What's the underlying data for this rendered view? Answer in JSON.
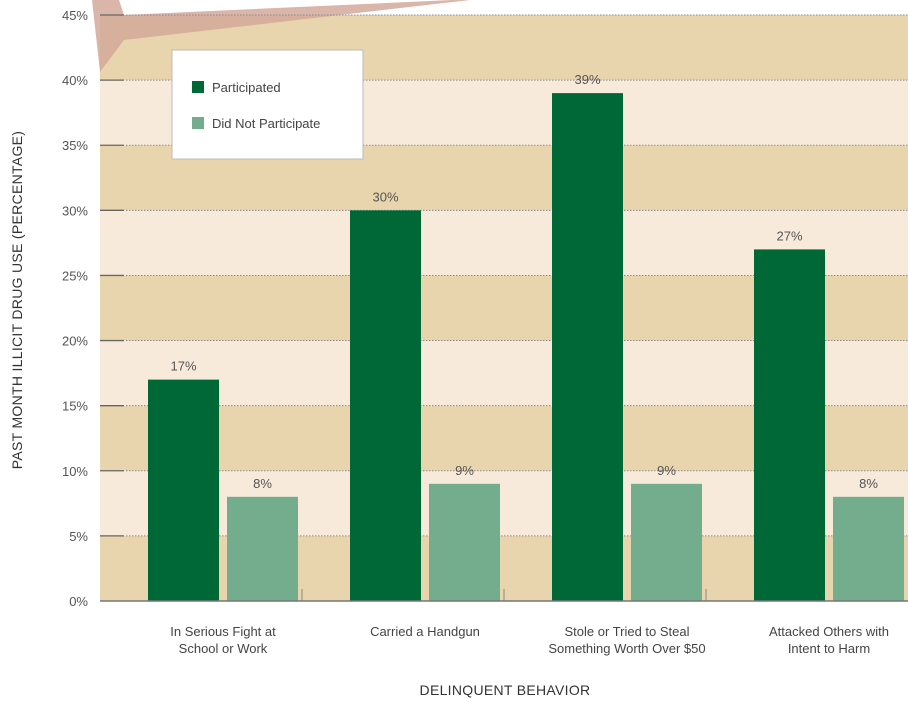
{
  "chart_data": {
    "type": "bar",
    "xlabel": "DELINQUENT BEHAVIOR",
    "ylabel": "PAST MONTH ILLICIT DRUG USE (PERCENTAGE)",
    "ylim": [
      0,
      45
    ],
    "yticks": [
      "0%",
      "5%",
      "10%",
      "15%",
      "20%",
      "25%",
      "30%",
      "35%",
      "40%",
      "45%"
    ],
    "categories": [
      [
        "In Serious Fight at",
        "School or Work"
      ],
      [
        "Carried a Handgun"
      ],
      [
        "Stole or Tried to Steal",
        "Something Worth Over $50"
      ],
      [
        "Attacked Others with",
        "Intent to Harm"
      ]
    ],
    "series": [
      {
        "name": "Participated",
        "color": "#006837",
        "values": [
          17,
          30,
          39,
          27
        ],
        "labels": [
          "17%",
          "30%",
          "39%",
          "27%"
        ]
      },
      {
        "name": "Did Not Participate",
        "color": "#74ad8e",
        "values": [
          8,
          9,
          9,
          8
        ],
        "labels": [
          "8%",
          "9%",
          "9%",
          "8%"
        ]
      }
    ],
    "legend_position": "top-left",
    "grid": true,
    "colors": {
      "band_dark": "#e8d4ad",
      "band_light": "#f8eadb",
      "gridline": "#8a8a8a",
      "arrow": "#d3a89a"
    }
  }
}
